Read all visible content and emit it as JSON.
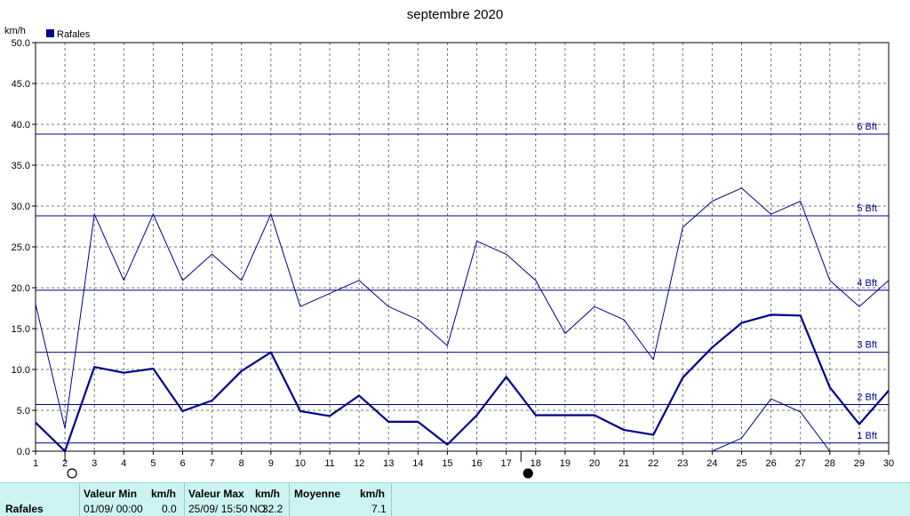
{
  "chart_data": {
    "type": "line",
    "title": "septembre 2020",
    "ylabel": "km/h",
    "ylim": [
      0,
      50
    ],
    "yticks": [
      "0.0",
      "5.0",
      "10.0",
      "15.0",
      "20.0",
      "25.0",
      "30.0",
      "35.0",
      "40.0",
      "45.0",
      "50.0"
    ],
    "x": [
      1,
      2,
      3,
      4,
      5,
      6,
      7,
      8,
      9,
      10,
      11,
      12,
      13,
      14,
      15,
      16,
      17,
      18,
      19,
      20,
      21,
      22,
      23,
      24,
      25,
      26,
      27,
      28,
      29,
      30
    ],
    "legend": "Rafales",
    "grid": true,
    "series": [
      {
        "name": "Rafales",
        "style": "thick",
        "color": "#00008b",
        "values": [
          3.5,
          0.0,
          10.3,
          9.6,
          10.1,
          4.9,
          6.2,
          9.8,
          12.1,
          4.9,
          4.3,
          6.8,
          3.6,
          3.6,
          0.8,
          4.4,
          9.1,
          4.4,
          4.4,
          4.4,
          2.6,
          2.0,
          9.0,
          12.7,
          15.7,
          16.7,
          16.6,
          7.8,
          3.3,
          7.4
        ]
      },
      {
        "style": "thin",
        "color": "#00008b",
        "values": [
          18.0,
          2.8,
          29.0,
          20.9,
          29.0,
          20.9,
          24.1,
          20.9,
          29.0,
          17.7,
          19.3,
          20.9,
          17.7,
          16.1,
          12.9,
          25.7,
          24.1,
          20.9,
          14.4,
          17.7,
          16.1,
          11.2,
          27.4,
          30.6,
          32.2,
          29.0,
          30.6,
          20.9,
          17.7,
          20.9
        ]
      },
      {
        "style": "thin",
        "color": "#00008b",
        "x": [
          24,
          25,
          26,
          27,
          28
        ],
        "values": [
          0.0,
          1.6,
          6.4,
          4.8,
          0.0
        ]
      }
    ],
    "beaufort": [
      {
        "label": "1 Bft",
        "value": 1.0
      },
      {
        "label": "2 Bft",
        "value": 5.7
      },
      {
        "label": "3 Bft",
        "value": 12.1
      },
      {
        "label": "4 Bft",
        "value": 19.7
      },
      {
        "label": "5 Bft",
        "value": 28.8
      },
      {
        "label": "6 Bft",
        "value": 38.8
      }
    ],
    "moon_markers": [
      {
        "day": 2,
        "phase": "full-moon"
      },
      {
        "day": 17.5,
        "phase": "new-moon"
      }
    ]
  },
  "stats": {
    "row_label": "Rafales",
    "min_header": "Valeur Min",
    "min_unit": "km/h",
    "min_date": "01/09/  00:00",
    "min_value": "0.0",
    "max_header": "Valeur Max",
    "max_unit": "km/h",
    "max_date": "25/09/  15:50",
    "max_dir": "NO",
    "max_value": "32.2",
    "avg_header": "Moyenne",
    "avg_unit": "km/h",
    "avg_value": "7.1"
  }
}
